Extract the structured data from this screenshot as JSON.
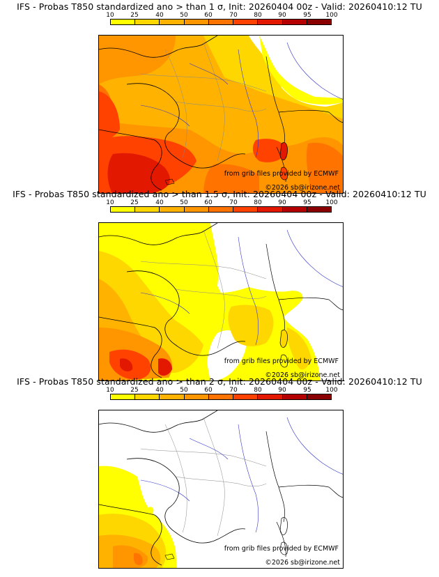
{
  "scale": {
    "labels": [
      "10",
      "25",
      "40",
      "50",
      "60",
      "70",
      "80",
      "90",
      "95",
      "100"
    ],
    "colors": [
      "#ffff00",
      "#ffd700",
      "#ffb300",
      "#ff9600",
      "#ff7400",
      "#ff4200",
      "#e21800",
      "#b40000",
      "#8a0000",
      "#5a0000"
    ]
  },
  "credits": {
    "source": "from grib files provided by ECMWF",
    "copyright": "©2026 sb@irizone.net"
  },
  "panels": [
    {
      "title": "IFS - Probas T850  standardized ano > than 1 σ, Init: 20260404 00z - Valid: 20260410:12 TU"
    },
    {
      "title": "IFS - Probas T850  standardized ano > than 1.5 σ, Init: 20260404 00z - Valid: 20260410:12 TU"
    },
    {
      "title": "IFS - Probas T850  standardized ano > than 2 σ, Init: 20260404 00z - Valid: 20260410:12 TU"
    }
  ]
}
